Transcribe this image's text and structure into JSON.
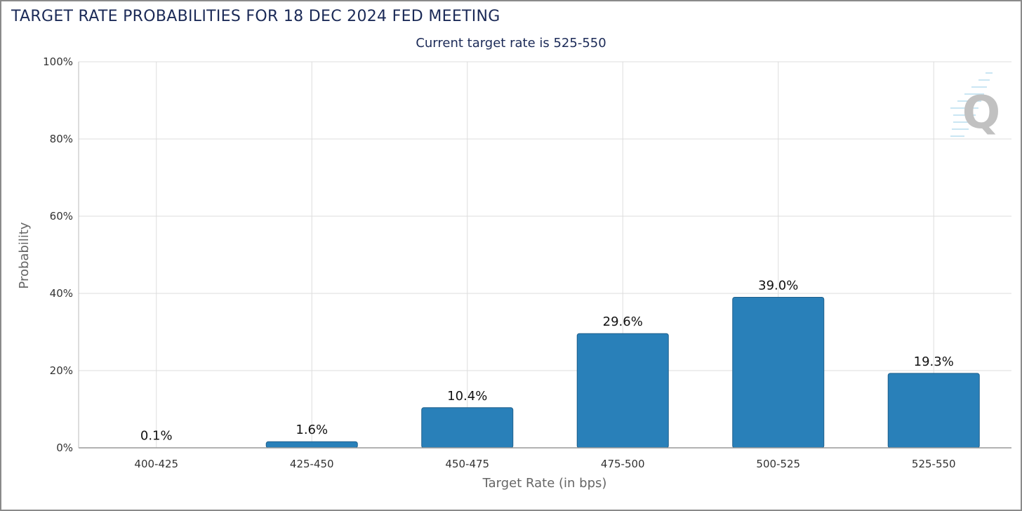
{
  "title": "TARGET RATE PROBABILITIES FOR 18 DEC 2024 FED MEETING",
  "watermark_letter": "Q",
  "chart_data": {
    "type": "bar",
    "title": "TARGET RATE PROBABILITIES FOR 18 DEC 2024 FED MEETING",
    "subtitle": "Current target rate is 525-550",
    "xlabel": "Target Rate (in bps)",
    "ylabel": "Probability",
    "categories": [
      "400-425",
      "425-450",
      "450-475",
      "475-500",
      "500-525",
      "525-550"
    ],
    "values": [
      0.1,
      1.6,
      10.4,
      29.6,
      39.0,
      19.3
    ],
    "data_labels": [
      "0.1%",
      "1.6%",
      "10.4%",
      "29.6%",
      "39.0%",
      "19.3%"
    ],
    "yticks": [
      "0%",
      "20%",
      "40%",
      "60%",
      "80%",
      "100%"
    ],
    "ylim": [
      0,
      100
    ],
    "grid": true,
    "bar_color": "#2980b9",
    "bar_edge_color": "#1f5f8b",
    "title_color": "#1b2a57"
  }
}
